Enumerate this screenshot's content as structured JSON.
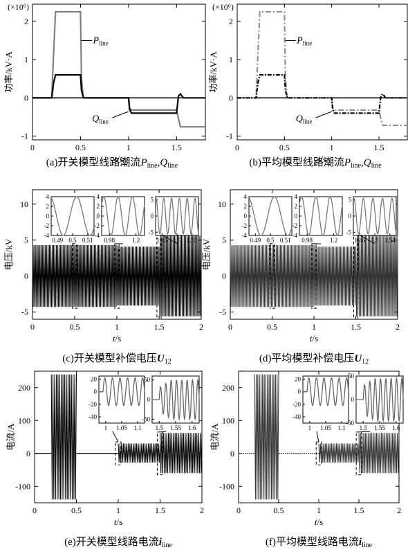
{
  "chart_data": [
    {
      "id": "a",
      "type": "line",
      "caption": "(a)开关模型线路潮流P_line,Q_line",
      "caption_parts": [
        "(a)开关模型线路潮流",
        "P",
        "line",
        ",",
        "Q",
        "line"
      ],
      "xlabel": "t/s",
      "ylabel": "功率/kV·A",
      "exponent": "(×10⁶)",
      "xlim": [
        0,
        1.8
      ],
      "ylim": [
        -1.1,
        2.45
      ],
      "xticks": [
        0,
        0.5,
        1,
        1.5
      ],
      "yticks": [
        -1,
        0,
        1,
        2
      ],
      "annotations": [
        {
          "text": "P",
          "sub": "line"
        },
        {
          "text": "Q",
          "sub": "line"
        }
      ],
      "series": [
        {
          "name": "P_line",
          "color": "#808080",
          "dash": "",
          "x": [
            0,
            0.2,
            0.22,
            0.24,
            0.5,
            0.51,
            0.53,
            1.0,
            1.01,
            1.03,
            1.5,
            1.52,
            1.54,
            1.8
          ],
          "y": [
            0,
            0,
            1.2,
            2.25,
            2.25,
            0.5,
            0,
            0,
            -0.25,
            -0.32,
            -0.32,
            -0.55,
            -0.76,
            -0.76
          ]
        },
        {
          "name": "Q_line",
          "color": "#000000",
          "dash": "",
          "x": [
            0,
            0.2,
            0.22,
            0.24,
            0.5,
            0.51,
            0.53,
            1.0,
            1.01,
            1.03,
            1.5,
            1.52,
            1.54,
            1.57,
            1.8
          ],
          "y": [
            0,
            0,
            0.4,
            0.6,
            0.6,
            0.2,
            0,
            0,
            -0.3,
            -0.4,
            -0.4,
            0.05,
            0.1,
            0,
            0
          ]
        }
      ]
    },
    {
      "id": "b",
      "type": "line",
      "caption": "(b)平均模型线路潮流P_line,Q_line",
      "caption_parts": [
        "(b)平均模型线路潮流",
        "P",
        "line",
        ",",
        "Q",
        "line"
      ],
      "xlabel": "t/s",
      "ylabel": "功率/kV·A",
      "exponent": "(×10⁶)",
      "xlim": [
        0,
        1.8
      ],
      "ylim": [
        -1.1,
        2.45
      ],
      "xticks": [
        0,
        0.5,
        1,
        1.5
      ],
      "yticks": [
        -1,
        0,
        1,
        2
      ],
      "annotations": [
        {
          "text": "P",
          "sub": "line"
        },
        {
          "text": "Q",
          "sub": "line"
        }
      ],
      "series": [
        {
          "name": "P_line",
          "color": "#909090",
          "dash": "8 3 2 3",
          "x": [
            0,
            0.2,
            0.22,
            0.24,
            0.5,
            0.51,
            0.53,
            1.0,
            1.01,
            1.03,
            1.5,
            1.52,
            1.54,
            1.8
          ],
          "y": [
            0,
            0,
            1.2,
            2.25,
            2.25,
            0.5,
            0,
            0,
            -0.25,
            -0.32,
            -0.32,
            -0.55,
            -0.72,
            -0.72
          ]
        },
        {
          "name": "Q_line",
          "color": "#000000",
          "dash": "6 2 2 2",
          "x": [
            0,
            0.2,
            0.22,
            0.24,
            0.5,
            0.51,
            0.53,
            1.0,
            1.01,
            1.03,
            1.5,
            1.52,
            1.54,
            1.57,
            1.8
          ],
          "y": [
            0,
            0,
            0.4,
            0.6,
            0.6,
            0.2,
            0,
            0,
            -0.3,
            -0.4,
            -0.4,
            0.05,
            0.1,
            0,
            0
          ]
        }
      ]
    },
    {
      "id": "c",
      "type": "line",
      "caption": "(c)开关模型补偿电压U_12",
      "caption_parts": [
        "(c)开关模型补偿电压",
        "U",
        "12"
      ],
      "xlabel": "t/s",
      "ylabel": "电压/kV",
      "xlim": [
        0,
        2
      ],
      "ylim": [
        -6,
        12
      ],
      "xticks": [
        0,
        0.5,
        1,
        1.5,
        2
      ],
      "yticks": [
        -5,
        0,
        5,
        10
      ],
      "envelope": [
        {
          "x0": 0,
          "x1": 1.0,
          "amp": 4.3
        },
        {
          "x0": 1.0,
          "x1": 1.5,
          "amp": 4.1
        },
        {
          "x0": 1.5,
          "x1": 2.0,
          "amp": 5.6
        }
      ],
      "cycles": 120,
      "color": "#000000",
      "insets": [
        {
          "xlim": [
            0.485,
            0.515
          ],
          "ylim": [
            -4,
            4
          ],
          "xticks": [
            "0.49",
            "0.5",
            "0.51"
          ],
          "yticks": [
            -4,
            -2,
            0,
            2,
            4
          ],
          "amp": 4.0,
          "cycles": 1.6,
          "phase": 0.3,
          "zoom": [
            0.45,
            0.55,
            -4.5,
            4.5
          ]
        },
        {
          "xlim": [
            0.96,
            1.24
          ],
          "ylim": [
            -4,
            4
          ],
          "xticks": [
            "0.98",
            "1.2"
          ],
          "yticks": [
            -4,
            -2,
            0,
            2,
            4
          ],
          "amp": 4.0,
          "cycles": 3.0,
          "phase": 0.1,
          "zoom": [
            0.95,
            1.05,
            -4.5,
            4.5
          ]
        },
        {
          "xlim": [
            1.44,
            1.56
          ],
          "ylim": [
            -6,
            6
          ],
          "xticks": [
            "1.45",
            "1.5",
            "1.55"
          ],
          "yticks": [
            -5,
            0,
            5
          ],
          "amp": 5.5,
          "cycles": 5.5,
          "phase": 0.2,
          "zoom": [
            1.45,
            1.55,
            -6,
            6
          ]
        }
      ]
    },
    {
      "id": "d",
      "type": "line",
      "caption": "(d)平均模型补偿电压U_12",
      "caption_parts": [
        "(d)平均模型补偿电压",
        "U",
        "12"
      ],
      "xlabel": "t/s",
      "ylabel": "电压/kV",
      "xlim": [
        0,
        2
      ],
      "ylim": [
        -6,
        12
      ],
      "xticks": [
        0,
        0.5,
        1,
        1.5,
        2
      ],
      "yticks": [
        -5,
        0,
        5,
        10
      ],
      "envelope": [
        {
          "x0": 0,
          "x1": 1.0,
          "amp": 4.3
        },
        {
          "x0": 1.0,
          "x1": 1.5,
          "amp": 4.1
        },
        {
          "x0": 1.5,
          "x1": 2.0,
          "amp": 5.6
        }
      ],
      "cycles": 120,
      "color": "#333333",
      "insets": [
        {
          "xlim": [
            0.485,
            0.515
          ],
          "ylim": [
            -4,
            4
          ],
          "xticks": [
            "0.49",
            "0.5",
            "0.51"
          ],
          "yticks": [
            -4,
            -2,
            0,
            2,
            4
          ],
          "amp": 4.0,
          "cycles": 1.6,
          "phase": 0.3,
          "zoom": [
            0.45,
            0.55,
            -4.5,
            4.5
          ]
        },
        {
          "xlim": [
            0.96,
            1.24
          ],
          "ylim": [
            -4,
            4
          ],
          "xticks": [
            "0.98",
            "1.2"
          ],
          "yticks": [
            -4,
            -2,
            0,
            2,
            4
          ],
          "amp": 4.0,
          "cycles": 3.0,
          "phase": 0.1,
          "zoom": [
            0.95,
            1.05,
            -4.5,
            4.5
          ]
        },
        {
          "xlim": [
            1.455,
            1.545
          ],
          "ylim": [
            -6,
            6
          ],
          "xticks": [
            "1.46",
            "1.5",
            "1.54"
          ],
          "yticks": [
            -5,
            0,
            5
          ],
          "amp": 5.5,
          "cycles": 4.5,
          "phase": 0.2,
          "zoom": [
            1.45,
            1.55,
            -6,
            6
          ]
        }
      ]
    },
    {
      "id": "e",
      "type": "line",
      "caption": "(e)开关模型线路电流i_line",
      "caption_parts": [
        "(e)开关模型线路电流",
        "i",
        "line"
      ],
      "xlabel": "t/s",
      "ylabel": "电流/A",
      "xlim": [
        0,
        2
      ],
      "ylim": [
        -150,
        250
      ],
      "xticks": [
        0,
        0.5,
        1,
        1.5,
        2
      ],
      "yticks": [
        -100,
        0,
        100,
        200
      ],
      "bursts": [
        {
          "x0": 0.2,
          "x1": 0.5,
          "top": 240,
          "bottom": -140,
          "cycles": 15
        },
        {
          "x0": 1.0,
          "x1": 1.5,
          "top": 30,
          "bottom": -28,
          "cycles": 25
        },
        {
          "x0": 1.5,
          "x1": 2.0,
          "top": 62,
          "bottom": -60,
          "cycles": 25
        }
      ],
      "color": "#000000",
      "insets": [
        {
          "xlim": [
            0.99,
            1.1
          ],
          "ylim": [
            -50,
            25
          ],
          "xticks": [
            "1",
            "1.05",
            "1.1"
          ],
          "yticks": [
            -40,
            -20,
            0,
            20
          ],
          "amp": 22,
          "cycles": 5.5,
          "start": 0.09,
          "zoom": [
            0.95,
            1.05,
            -35,
            35
          ]
        },
        {
          "xlim": [
            1.47,
            1.62
          ],
          "ylim": [
            -60,
            60
          ],
          "xticks": [
            "1.5",
            "1.55",
            "1.6"
          ],
          "yticks": [
            -50,
            0,
            50
          ],
          "amp": 30,
          "amp2": 50,
          "cycles": 7.5,
          "start": 0.15,
          "zoom": [
            1.45,
            1.55,
            -65,
            65
          ]
        }
      ]
    },
    {
      "id": "f",
      "type": "line",
      "caption": "(f)平均模型线路电流i_line",
      "caption_parts": [
        "(f)平均模型线路电流",
        "i",
        "line"
      ],
      "xlabel": "t/s",
      "ylabel": "电流/A",
      "xlim": [
        0,
        2
      ],
      "ylim": [
        -150,
        250
      ],
      "xticks": [
        0,
        0.5,
        1,
        1.5,
        2
      ],
      "yticks": [
        -100,
        0,
        100,
        200
      ],
      "bursts": [
        {
          "x0": 0.2,
          "x1": 0.5,
          "top": 240,
          "bottom": -140,
          "cycles": 15
        },
        {
          "x0": 1.0,
          "x1": 1.5,
          "top": 30,
          "bottom": -28,
          "cycles": 25
        },
        {
          "x0": 1.5,
          "x1": 2.0,
          "top": 62,
          "bottom": -60,
          "cycles": 25
        }
      ],
      "color": "#333333",
      "insets": [
        {
          "xlim": [
            0.99,
            1.1
          ],
          "ylim": [
            -50,
            25
          ],
          "xticks": [
            "1",
            "1.05",
            "1.1"
          ],
          "yticks": [
            -40,
            -20,
            0,
            20
          ],
          "amp": 22,
          "cycles": 5.5,
          "start": 0.09,
          "zoom": [
            0.95,
            1.05,
            -35,
            35
          ]
        },
        {
          "xlim": [
            1.47,
            1.62
          ],
          "ylim": [
            -50,
            50
          ],
          "xticks": [
            "1.5",
            "1.55",
            "1.6"
          ],
          "yticks": [
            -50,
            0,
            50
          ],
          "amp": 30,
          "amp2": 45,
          "cycles": 7.5,
          "start": 0.15,
          "zoom": [
            1.45,
            1.55,
            -65,
            65
          ]
        }
      ]
    }
  ]
}
